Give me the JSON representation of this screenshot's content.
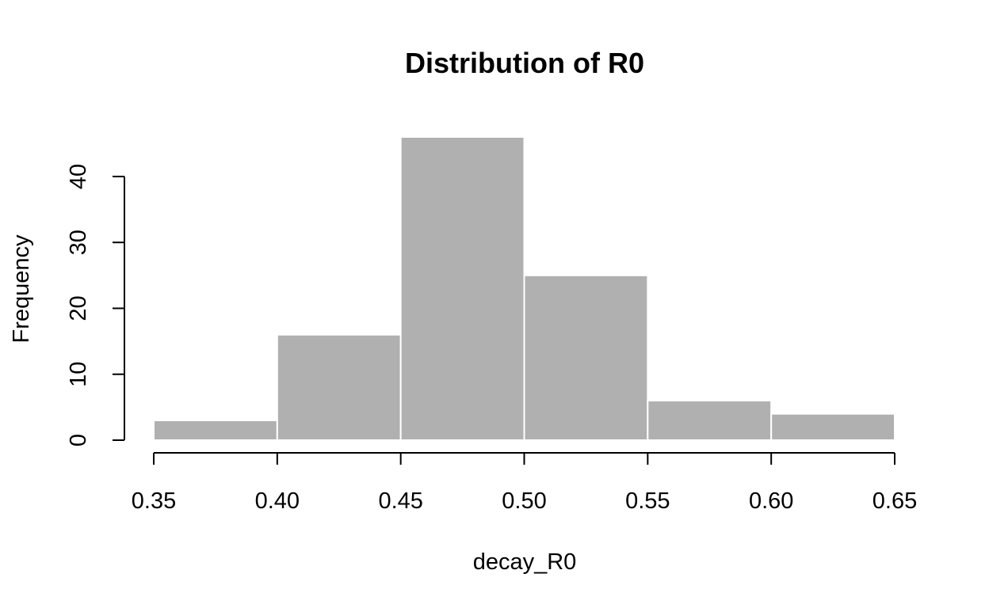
{
  "chart_data": {
    "type": "bar",
    "subtype": "histogram",
    "title": "Distribution of R0",
    "xlabel": "decay_R0",
    "ylabel": "Frequency",
    "bins": [
      {
        "start": 0.35,
        "end": 0.4,
        "count": 3
      },
      {
        "start": 0.4,
        "end": 0.45,
        "count": 16
      },
      {
        "start": 0.45,
        "end": 0.5,
        "count": 46
      },
      {
        "start": 0.5,
        "end": 0.55,
        "count": 25
      },
      {
        "start": 0.55,
        "end": 0.6,
        "count": 6
      },
      {
        "start": 0.6,
        "end": 0.65,
        "count": 4
      }
    ],
    "xlim": [
      0.35,
      0.65
    ],
    "ylim": [
      0,
      46
    ],
    "x_ticks": [
      "0.35",
      "0.40",
      "0.45",
      "0.50",
      "0.55",
      "0.60",
      "0.65"
    ],
    "y_ticks": [
      "0",
      "10",
      "20",
      "30",
      "40"
    ],
    "grid": false,
    "bar_color": "#b0b0b0",
    "bar_border_color": "#ffffff"
  }
}
